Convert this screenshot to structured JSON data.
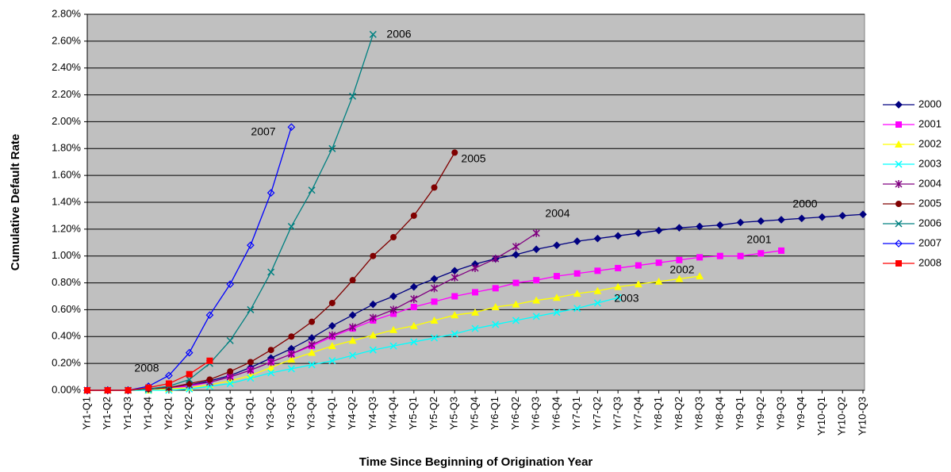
{
  "chart_data": {
    "type": "line",
    "y_label": "Cumulative Default Rate",
    "x_label": "Time Since Beginning of Origination Year",
    "categories": [
      "Yr1-Q1",
      "Yr1-Q2",
      "Yr1-Q3",
      "Yr1-Q4",
      "Yr2-Q1",
      "Yr2-Q2",
      "Yr2-Q3",
      "Yr2-Q4",
      "Yr3-Q1",
      "Yr3-Q2",
      "Yr3-Q3",
      "Yr3-Q4",
      "Yr4-Q1",
      "Yr4-Q2",
      "Yr4-Q3",
      "Yr4-Q4",
      "Yr5-Q1",
      "Yr5-Q2",
      "Yr5-Q3",
      "Yr5-Q4",
      "Yr6-Q1",
      "Yr6-Q2",
      "Yr6-Q3",
      "Yr6-Q4",
      "Yr7-Q1",
      "Yr7-Q2",
      "Yr7-Q3",
      "Yr7-Q4",
      "Yr8-Q1",
      "Yr8-Q2",
      "Yr8-Q3",
      "Yr8-Q4",
      "Yr9-Q1",
      "Yr9-Q2",
      "Yr9-Q3",
      "Yr9-Q4",
      "Yr10-Q1",
      "Yr10-Q2",
      "Yr10-Q3"
    ],
    "ylim": [
      0,
      2.8
    ],
    "yticks": [
      {
        "value": 0,
        "label": "0.00%"
      },
      {
        "value": 0.2,
        "label": "0.20%"
      },
      {
        "value": 0.4,
        "label": "0.40%"
      },
      {
        "value": 0.6,
        "label": "0.60%"
      },
      {
        "value": 0.8,
        "label": "0.80%"
      },
      {
        "value": 1.0,
        "label": "1.00%"
      },
      {
        "value": 1.2,
        "label": "1.20%"
      },
      {
        "value": 1.4,
        "label": "1.40%"
      },
      {
        "value": 1.6,
        "label": "1.60%"
      },
      {
        "value": 1.8,
        "label": "1.80%"
      },
      {
        "value": 2.0,
        "label": "2.00%"
      },
      {
        "value": 2.2,
        "label": "2.20%"
      },
      {
        "value": 2.4,
        "label": "2.40%"
      },
      {
        "value": 2.6,
        "label": "2.60%"
      },
      {
        "value": 2.8,
        "label": "2.80%"
      }
    ],
    "grid": true,
    "legend": "right",
    "series": [
      {
        "name": "2000",
        "color": "#000080",
        "marker": "diamond",
        "values": [
          0,
          0,
          0,
          0.01,
          0.02,
          0.04,
          0.07,
          0.11,
          0.17,
          0.24,
          0.31,
          0.39,
          0.48,
          0.56,
          0.64,
          0.7,
          0.77,
          0.83,
          0.89,
          0.94,
          0.98,
          1.01,
          1.05,
          1.08,
          1.11,
          1.13,
          1.15,
          1.17,
          1.19,
          1.21,
          1.22,
          1.23,
          1.25,
          1.26,
          1.27,
          1.28,
          1.29,
          1.3,
          1.31
        ]
      },
      {
        "name": "2001",
        "color": "#ff00ff",
        "marker": "square",
        "values": [
          0,
          0,
          0,
          0.01,
          0.02,
          0.03,
          0.06,
          0.1,
          0.15,
          0.21,
          0.27,
          0.33,
          0.4,
          0.46,
          0.52,
          0.57,
          0.62,
          0.66,
          0.7,
          0.73,
          0.76,
          0.8,
          0.82,
          0.85,
          0.87,
          0.89,
          0.91,
          0.93,
          0.95,
          0.97,
          0.99,
          1.0,
          1.0,
          1.02,
          1.04,
          null,
          null,
          null,
          null
        ]
      },
      {
        "name": "2002",
        "color": "#ffff00",
        "marker": "triangle",
        "values": [
          0,
          0,
          0,
          0,
          0.01,
          0.02,
          0.04,
          0.07,
          0.11,
          0.17,
          0.23,
          0.28,
          0.33,
          0.37,
          0.41,
          0.45,
          0.48,
          0.52,
          0.56,
          0.58,
          0.62,
          0.64,
          0.67,
          0.69,
          0.72,
          0.74,
          0.77,
          0.79,
          0.81,
          0.83,
          0.85,
          null,
          null,
          null,
          null,
          null,
          null,
          null,
          null
        ]
      },
      {
        "name": "2003",
        "color": "#00ffff",
        "marker": "x",
        "values": [
          0,
          0,
          0,
          0,
          0,
          0.01,
          0.03,
          0.05,
          0.09,
          0.13,
          0.16,
          0.19,
          0.22,
          0.26,
          0.3,
          0.33,
          0.36,
          0.39,
          0.42,
          0.46,
          0.49,
          0.52,
          0.55,
          0.58,
          0.61,
          0.65,
          0.69,
          null,
          null,
          null,
          null,
          null,
          null,
          null,
          null,
          null,
          null,
          null,
          null
        ]
      },
      {
        "name": "2004",
        "color": "#800080",
        "marker": "star",
        "values": [
          0,
          0,
          0,
          0.01,
          0.02,
          0.04,
          0.06,
          0.1,
          0.15,
          0.21,
          0.27,
          0.34,
          0.41,
          0.47,
          0.54,
          0.6,
          0.68,
          0.76,
          0.84,
          0.91,
          0.98,
          1.07,
          1.17,
          null,
          null,
          null,
          null,
          null,
          null,
          null,
          null,
          null,
          null,
          null,
          null,
          null,
          null,
          null,
          null
        ]
      },
      {
        "name": "2005",
        "color": "#800000",
        "marker": "circle",
        "values": [
          0,
          0,
          0,
          0.01,
          0.02,
          0.05,
          0.08,
          0.14,
          0.21,
          0.3,
          0.4,
          0.51,
          0.65,
          0.82,
          1.0,
          1.14,
          1.3,
          1.51,
          1.77,
          null,
          null,
          null,
          null,
          null,
          null,
          null,
          null,
          null,
          null,
          null,
          null,
          null,
          null,
          null,
          null,
          null,
          null,
          null,
          null
        ]
      },
      {
        "name": "2006",
        "color": "#008080",
        "marker": "x",
        "values": [
          0,
          0,
          0,
          0.01,
          0.03,
          0.08,
          0.2,
          0.37,
          0.6,
          0.88,
          1.22,
          1.49,
          1.8,
          2.19,
          2.65,
          null,
          null,
          null,
          null,
          null,
          null,
          null,
          null,
          null,
          null,
          null,
          null,
          null,
          null,
          null,
          null,
          null,
          null,
          null,
          null,
          null,
          null,
          null,
          null
        ]
      },
      {
        "name": "2007",
        "color": "#0000ff",
        "marker": "open-diamond",
        "values": [
          0,
          0,
          0,
          0.03,
          0.11,
          0.28,
          0.56,
          0.79,
          1.08,
          1.47,
          1.96,
          null,
          null,
          null,
          null,
          null,
          null,
          null,
          null,
          null,
          null,
          null,
          null,
          null,
          null,
          null,
          null,
          null,
          null,
          null,
          null,
          null,
          null,
          null,
          null,
          null,
          null,
          null,
          null
        ]
      },
      {
        "name": "2008",
        "color": "#ff0000",
        "marker": "square",
        "values": [
          0,
          0,
          0,
          0.02,
          0.05,
          0.12,
          0.22,
          null,
          null,
          null,
          null,
          null,
          null,
          null,
          null,
          null,
          null,
          null,
          null,
          null,
          null,
          null,
          null,
          null,
          null,
          null,
          null,
          null,
          null,
          null,
          null,
          null,
          null,
          null,
          null,
          null,
          null,
          null,
          null
        ]
      }
    ],
    "annotations": [
      "2000",
      "2001",
      "2002",
      "2003",
      "2004",
      "2005",
      "2006",
      "2007",
      "2008"
    ]
  }
}
